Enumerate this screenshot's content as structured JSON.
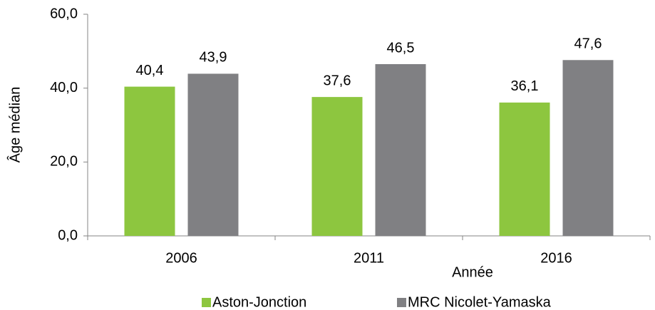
{
  "chart_data": {
    "type": "bar",
    "categories": [
      "2006",
      "2011",
      "2016"
    ],
    "series": [
      {
        "name": "Aston-Jonction",
        "color": "#8dc63f",
        "values": [
          40.4,
          37.6,
          36.1
        ],
        "value_labels": [
          "40,4",
          "37,6",
          "36,1"
        ]
      },
      {
        "name": "MRC Nicolet-Yamaska",
        "color": "#808083",
        "values": [
          43.9,
          46.5,
          47.6
        ],
        "value_labels": [
          "43,9",
          "46,5",
          "47,6"
        ]
      }
    ],
    "xlabel": "Année",
    "ylabel": "Âge médian",
    "ylim": [
      0,
      60
    ],
    "yticks": [
      {
        "value": 0,
        "label": "0,0"
      },
      {
        "value": 20,
        "label": "20,0"
      },
      {
        "value": 40,
        "label": "40,0"
      },
      {
        "value": 60,
        "label": "60,0"
      }
    ],
    "legend": "bottom"
  }
}
